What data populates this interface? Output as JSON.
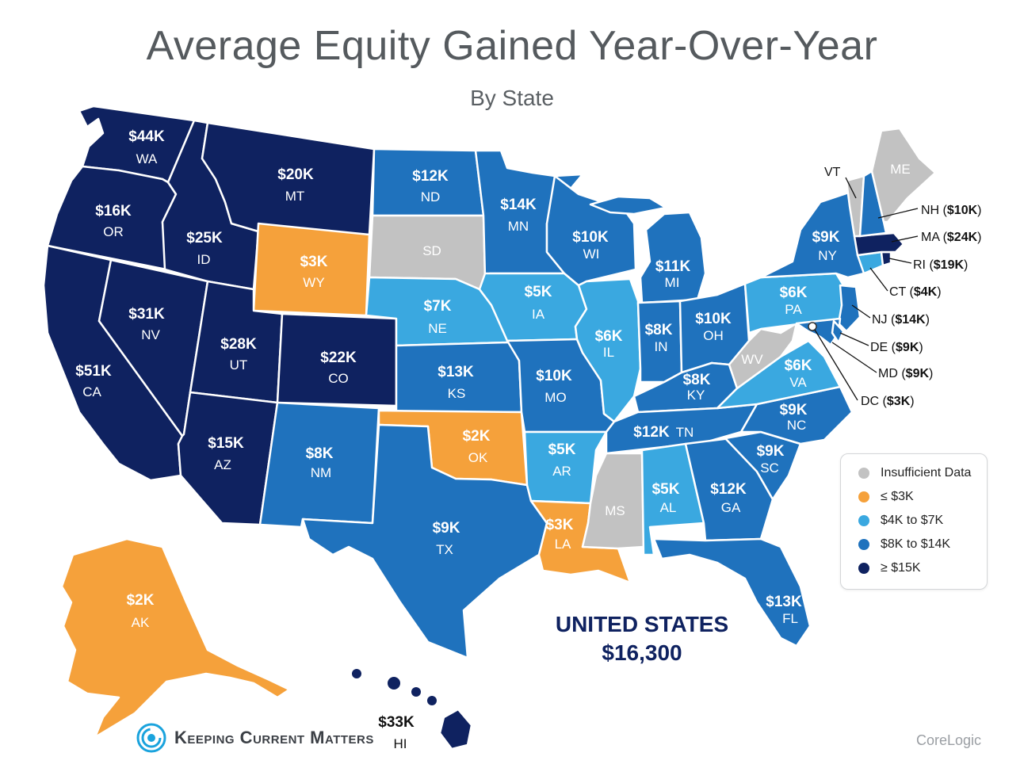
{
  "title": "Average Equity Gained Year-Over-Year",
  "subtitle": "By State",
  "colors": {
    "insufficient": "#c2c2c2",
    "le3k": "#f5a13b",
    "k4to7": "#3aa8e0",
    "k8to14": "#1f72bd",
    "ge15k": "#0f2260"
  },
  "legend": {
    "insufficient": "Insufficient Data",
    "le3k": "≤ $3K",
    "k4to7": "$4K to $7K",
    "k8to14": "$8K to $14K",
    "ge15k": "≥ $15K"
  },
  "states": {
    "WA": {
      "value": "$44K",
      "abbr": "WA"
    },
    "OR": {
      "value": "$16K",
      "abbr": "OR"
    },
    "CA": {
      "value": "$51K",
      "abbr": "CA"
    },
    "ID": {
      "value": "$25K",
      "abbr": "ID"
    },
    "NV": {
      "value": "$31K",
      "abbr": "NV"
    },
    "MT": {
      "value": "$20K",
      "abbr": "MT"
    },
    "WY": {
      "value": "$3K",
      "abbr": "WY"
    },
    "UT": {
      "value": "$28K",
      "abbr": "UT"
    },
    "AZ": {
      "value": "$15K",
      "abbr": "AZ"
    },
    "CO": {
      "value": "$22K",
      "abbr": "CO"
    },
    "NM": {
      "value": "$8K",
      "abbr": "NM"
    },
    "ND": {
      "value": "$12K",
      "abbr": "ND"
    },
    "SD": {
      "value": "",
      "abbr": "SD"
    },
    "NE": {
      "value": "$7K",
      "abbr": "NE"
    },
    "KS": {
      "value": "$13K",
      "abbr": "KS"
    },
    "OK": {
      "value": "$2K",
      "abbr": "OK"
    },
    "TX": {
      "value": "$9K",
      "abbr": "TX"
    },
    "MN": {
      "value": "$14K",
      "abbr": "MN"
    },
    "IA": {
      "value": "$5K",
      "abbr": "IA"
    },
    "MO": {
      "value": "$10K",
      "abbr": "MO"
    },
    "AR": {
      "value": "$5K",
      "abbr": "AR"
    },
    "LA": {
      "value": "$3K",
      "abbr": "LA"
    },
    "WI": {
      "value": "$10K",
      "abbr": "WI"
    },
    "IL": {
      "value": "$6K",
      "abbr": "IL"
    },
    "MS": {
      "value": "",
      "abbr": "MS"
    },
    "MI": {
      "value": "$11K",
      "abbr": "MI"
    },
    "IN": {
      "value": "$8K",
      "abbr": "IN"
    },
    "OH": {
      "value": "$10K",
      "abbr": "OH"
    },
    "KY": {
      "value": "$8K",
      "abbr": "KY"
    },
    "TN": {
      "value": "$12K",
      "abbr": "TN"
    },
    "AL": {
      "value": "$5K",
      "abbr": "AL"
    },
    "GA": {
      "value": "$12K",
      "abbr": "GA"
    },
    "FL": {
      "value": "$13K",
      "abbr": "FL"
    },
    "SC": {
      "value": "$9K",
      "abbr": "SC"
    },
    "NC": {
      "value": "$9K",
      "abbr": "NC"
    },
    "VA": {
      "value": "$6K",
      "abbr": "VA"
    },
    "WV": {
      "value": "",
      "abbr": "WV"
    },
    "PA": {
      "value": "$6K",
      "abbr": "PA"
    },
    "NY": {
      "value": "$9K",
      "abbr": "NY"
    },
    "ME": {
      "value": "",
      "abbr": "ME"
    },
    "AK": {
      "value": "$2K",
      "abbr": "AK"
    },
    "HI": {
      "value": "$33K",
      "abbr": "HI"
    }
  },
  "callouts": {
    "VT": {
      "abbr": "VT",
      "value": ""
    },
    "NH": {
      "abbr": "NH",
      "value": "$10K"
    },
    "MA": {
      "abbr": "MA",
      "value": "$24K"
    },
    "RI": {
      "abbr": "RI",
      "value": "$19K"
    },
    "CT": {
      "abbr": "CT",
      "value": "$4K"
    },
    "NJ": {
      "abbr": "NJ",
      "value": "$14K"
    },
    "DE": {
      "abbr": "DE",
      "value": "$9K"
    },
    "MD": {
      "abbr": "MD",
      "value": "$9K"
    },
    "DC": {
      "abbr": "DC",
      "value": "$3K"
    }
  },
  "us_total": {
    "label": "UNITED STATES",
    "value": "$16,300"
  },
  "brand": "Keeping Current Matters",
  "source": "CoreLogic"
}
